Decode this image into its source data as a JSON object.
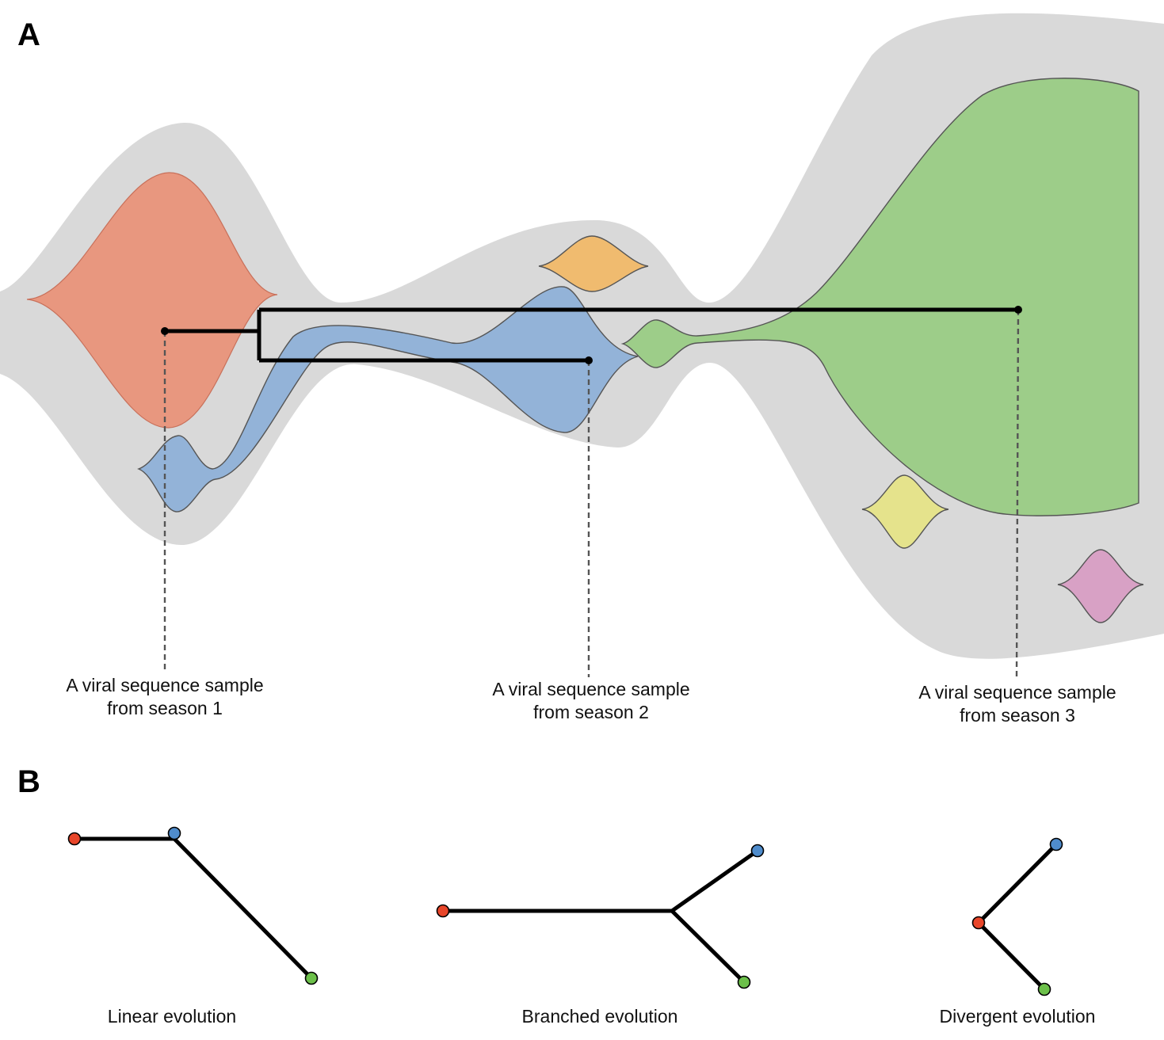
{
  "panel_a": {
    "letter": "A",
    "labels": [
      {
        "line1": "A viral sequence sample",
        "line2": "from season 1"
      },
      {
        "line1": "A viral sequence sample",
        "line2": "from season 2"
      },
      {
        "line1": "A viral sequence sample",
        "line2": "from season 3"
      }
    ]
  },
  "panel_b": {
    "letter": "B",
    "labels": [
      "Linear evolution",
      "Branched evolution",
      "Divergent evolution"
    ]
  },
  "colors": {
    "population": "#d9d9d9",
    "clade_red": "#e8977f",
    "clade_blue": "#93b3d8",
    "clade_orange": "#f0bb6f",
    "clade_green": "#9dcd89",
    "clade_yellow": "#e5e38c",
    "clade_pink": "#d8a1c5",
    "node_red": "#e8462a",
    "node_blue": "#4f8ccc",
    "node_green": "#6cc04a"
  }
}
